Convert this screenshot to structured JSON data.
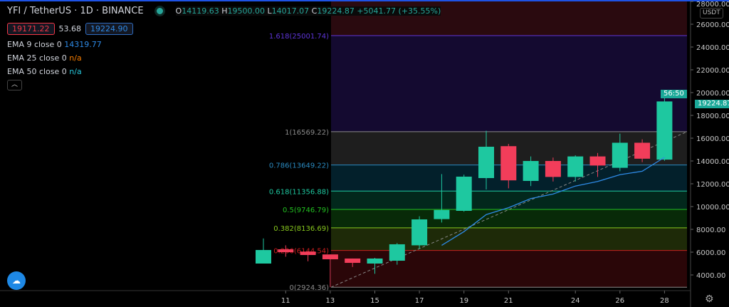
{
  "header": {
    "title": "YFI / TetherUS · 1D · BINANCE",
    "o_label": "O",
    "o": "14119.63",
    "h_label": "H",
    "h": "19500.00",
    "l_label": "L",
    "l": "14017.07",
    "c_label": "C",
    "c": "19224.87",
    "change": "+5041.77 (+35.55%)"
  },
  "quote": {
    "bid": "19171.22",
    "spread": "53.68",
    "ask": "19224.90"
  },
  "indicators": [
    {
      "label": "EMA 9 close 0",
      "value": "14319.77",
      "color": "#2e8ae6"
    },
    {
      "label": "EMA 25 close 0",
      "value": "n/a",
      "color": "#f57c00"
    },
    {
      "label": "EMA 50 close 0",
      "value": "n/a",
      "color": "#26c6da"
    }
  ],
  "collapse_icon": "chevron-up-icon",
  "axis": {
    "currency": "USDT",
    "last_price": "19224.87",
    "countdown": "56:50"
  },
  "chart_data": {
    "type": "candlestick",
    "ylim": [
      2000,
      28000
    ],
    "yticks": [
      "28000.00",
      "26000.00",
      "24000.00",
      "22000.00",
      "20000.00",
      "18000.00",
      "16000.00",
      "14000.00",
      "12000.00",
      "10000.00",
      "8000.00",
      "6000.00",
      "4000.00"
    ],
    "xticks": [
      {
        "day": 11,
        "label": "11"
      },
      {
        "day": 13,
        "label": "13"
      },
      {
        "day": 15,
        "label": "15"
      },
      {
        "day": 17,
        "label": "17"
      },
      {
        "day": 19,
        "label": "19"
      },
      {
        "day": 21,
        "label": "21"
      },
      {
        "day": 24,
        "label": "24"
      },
      {
        "day": 26,
        "label": "26"
      },
      {
        "day": 28,
        "label": "28"
      }
    ],
    "candles": [
      {
        "d": 10,
        "o": 5000,
        "h": 7200,
        "l": 5000,
        "c": 6190
      },
      {
        "d": 11,
        "o": 6250,
        "h": 6600,
        "l": 5600,
        "c": 6000
      },
      {
        "d": 12,
        "o": 6050,
        "h": 6100,
        "l": 5200,
        "c": 5750
      },
      {
        "d": 13,
        "o": 5800,
        "h": 5800,
        "l": 2924,
        "c": 5375
      },
      {
        "d": 14,
        "o": 5440,
        "h": 5440,
        "l": 4700,
        "c": 5060
      },
      {
        "d": 15,
        "o": 5000,
        "h": 5500,
        "l": 4100,
        "c": 5440
      },
      {
        "d": 16,
        "o": 5250,
        "h": 6800,
        "l": 4900,
        "c": 6690
      },
      {
        "d": 17,
        "o": 6600,
        "h": 9150,
        "l": 6300,
        "c": 8875
      },
      {
        "d": 18,
        "o": 8900,
        "h": 12850,
        "l": 8600,
        "c": 9700
      },
      {
        "d": 19,
        "o": 9625,
        "h": 12800,
        "l": 9550,
        "c": 12625
      },
      {
        "d": 20,
        "o": 12500,
        "h": 16650,
        "l": 11500,
        "c": 15250
      },
      {
        "d": 21,
        "o": 15300,
        "h": 15500,
        "l": 11600,
        "c": 12300
      },
      {
        "d": 22,
        "o": 12250,
        "h": 14400,
        "l": 11800,
        "c": 14000
      },
      {
        "d": 23,
        "o": 14000,
        "h": 14300,
        "l": 12200,
        "c": 12600
      },
      {
        "d": 24,
        "o": 12600,
        "h": 14500,
        "l": 12200,
        "c": 14400
      },
      {
        "d": 25,
        "o": 14400,
        "h": 14700,
        "l": 12600,
        "c": 13600
      },
      {
        "d": 26,
        "o": 13400,
        "h": 16400,
        "l": 13100,
        "c": 15600
      },
      {
        "d": 27,
        "o": 15600,
        "h": 15900,
        "l": 13900,
        "c": 14200
      },
      {
        "d": 28,
        "o": 14119.63,
        "h": 19500,
        "l": 14017.07,
        "c": 19224.87
      }
    ],
    "ema9": [
      [
        18,
        6600
      ],
      [
        19,
        7800
      ],
      [
        20,
        9300
      ],
      [
        21,
        9900
      ],
      [
        22,
        10700
      ],
      [
        23,
        11100
      ],
      [
        24,
        11800
      ],
      [
        25,
        12200
      ],
      [
        26,
        12800
      ],
      [
        27,
        13100
      ],
      [
        28,
        14320
      ]
    ],
    "fib": [
      {
        "label": "1.618(25001.74)",
        "price": 25001.74,
        "color": "#5e35d8",
        "zone": "#140a30"
      },
      {
        "label": "1(16569.22)",
        "price": 16569.22,
        "color": "#8a8a8a",
        "zone": "#1e1e1e"
      },
      {
        "label": "0.786(13649.22)",
        "price": 13649.22,
        "color": "#2a8ac0",
        "zone": "#03202b"
      },
      {
        "label": "0.618(11356.88)",
        "price": 11356.88,
        "color": "#1ec8a0",
        "zone": "#02281c"
      },
      {
        "label": "0.5(9746.79)",
        "price": 9746.79,
        "color": "#22c020",
        "zone": "#082a08"
      },
      {
        "label": "0.382(8136.69)",
        "price": 8136.69,
        "color": "#88c81e",
        "zone": "#1e2a08"
      },
      {
        "label": "0.236(6144.54)",
        "price": 6144.54,
        "color": "#c81e1e",
        "zone": "#2a0608"
      },
      {
        "label": "0(2924.36)",
        "price": 2924.36,
        "color": "#8a8a8a",
        "zone": null
      }
    ],
    "fib_top_zone": "#2a0a0f",
    "colors": {
      "up": "#1ec8a0",
      "down": "#f23d5a",
      "ema9": "#2e8ae6"
    }
  }
}
